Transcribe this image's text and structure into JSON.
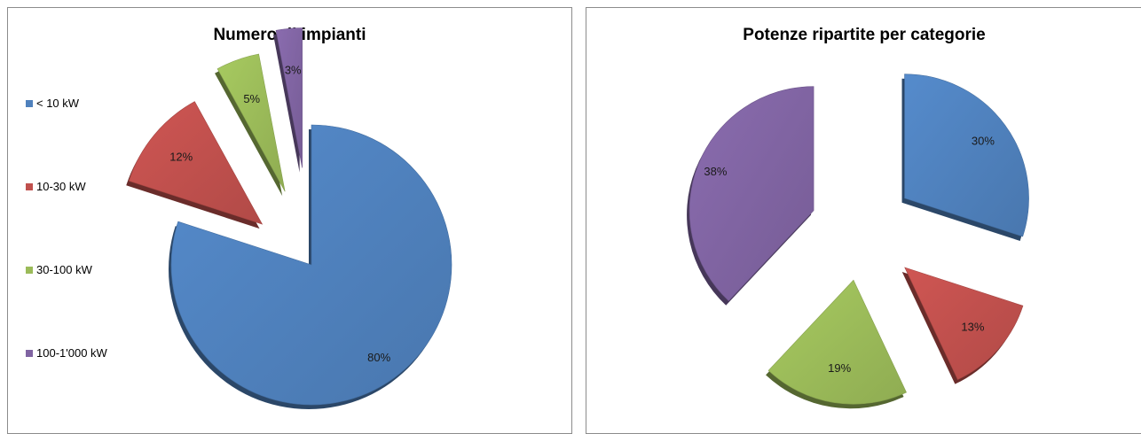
{
  "chart_data": [
    {
      "type": "pie",
      "title": "Numero di impianti",
      "categories": [
        "< 10 kW",
        "10-30 kW",
        "30-100 kW",
        "100-1'000 kW"
      ],
      "values": [
        80,
        12,
        5,
        3
      ],
      "labels": [
        "80%",
        "12%",
        "5%",
        "3%"
      ],
      "colors": [
        "#4f81bd",
        "#c0504d",
        "#9bbb59",
        "#8064a2"
      ],
      "legend": "left",
      "exploded": true,
      "style": "3d"
    },
    {
      "type": "pie",
      "title": "Potenze ripartite per categorie",
      "categories": [
        "< 10 kW",
        "10-30 kW",
        "30-100 kW",
        "100-1'000 kW"
      ],
      "values": [
        30,
        13,
        19,
        38
      ],
      "labels": [
        "30%",
        "13%",
        "19%",
        "38%"
      ],
      "colors": [
        "#4f81bd",
        "#c0504d",
        "#9bbb59",
        "#8064a2"
      ],
      "legend": "none",
      "exploded": true,
      "style": "3d"
    }
  ]
}
